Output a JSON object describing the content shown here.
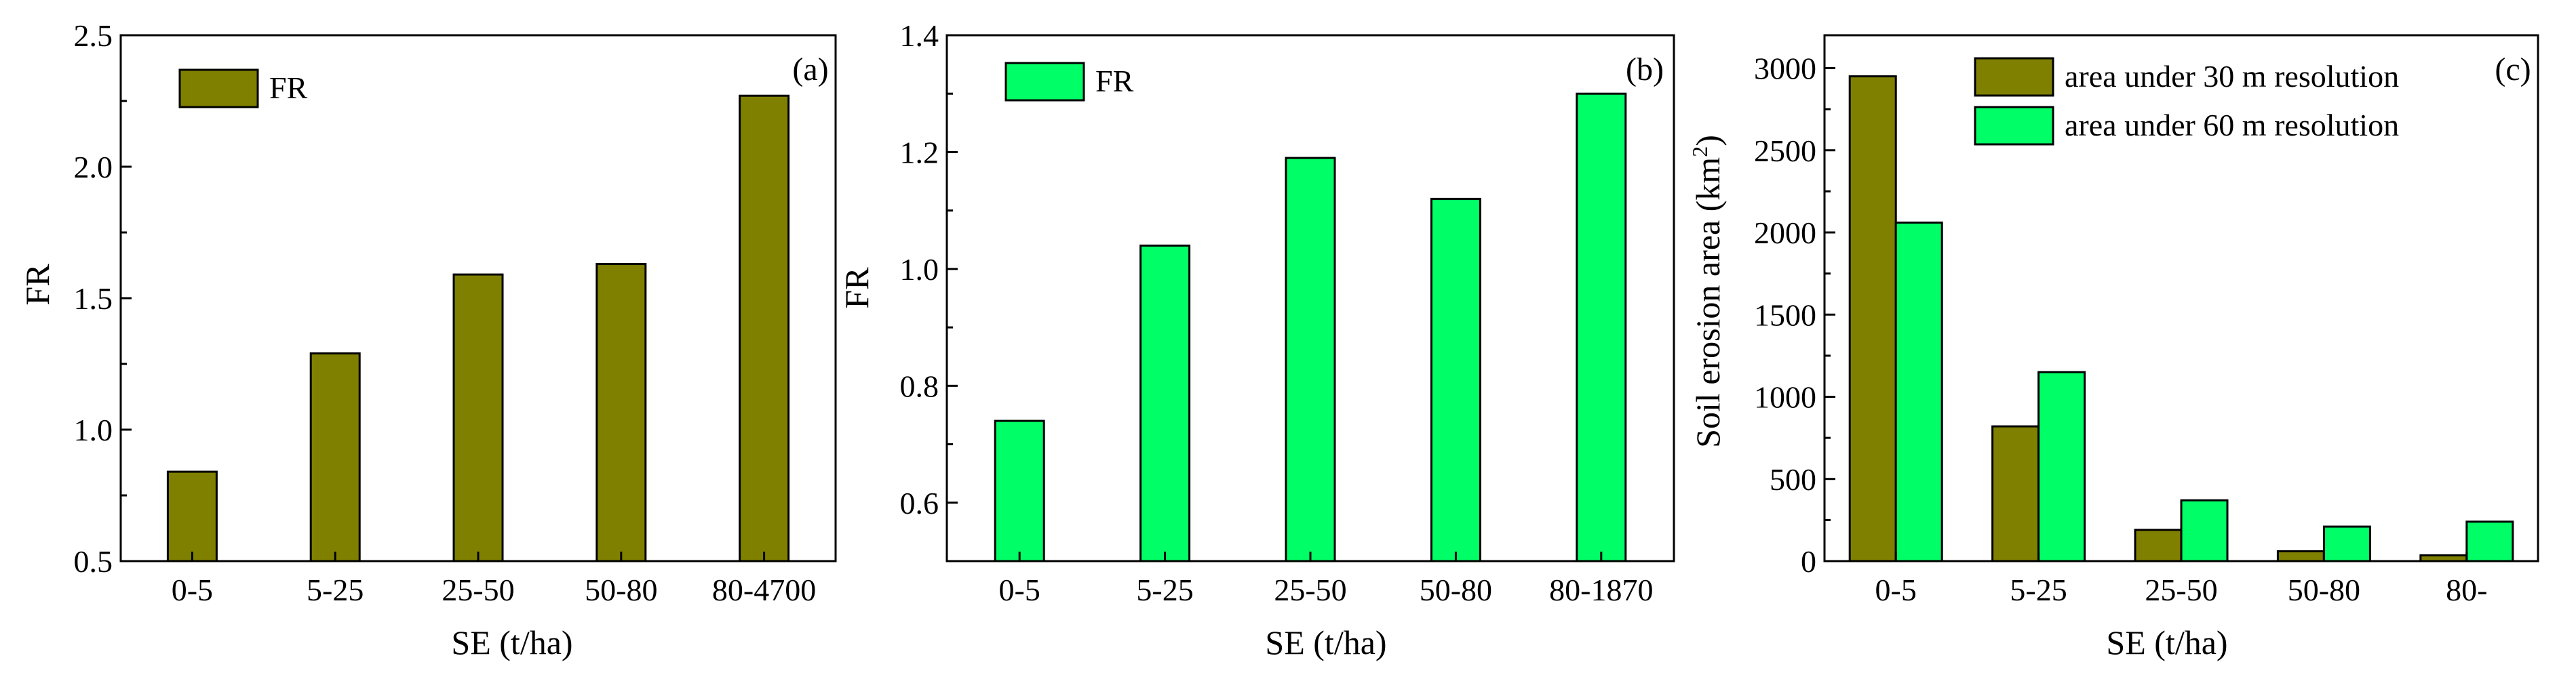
{
  "colors": {
    "olive": "#808000",
    "green": "#00FF66",
    "stroke": "#000000"
  },
  "chart_data": [
    {
      "type": "bar",
      "panel_label": "(a)",
      "categories": [
        "0-5",
        "5-25",
        "25-50",
        "50-80",
        "80-4700"
      ],
      "series": [
        {
          "name": "FR",
          "values": [
            0.84,
            1.29,
            1.59,
            1.63,
            2.27
          ],
          "color": "#808000"
        }
      ],
      "xlabel": "SE (t/ha)",
      "ylabel": "FR",
      "ylim": [
        0.5,
        2.5
      ],
      "yticks": [
        "0.5",
        "1.0",
        "1.5",
        "2.0",
        "2.5"
      ],
      "legend_position": "top-left"
    },
    {
      "type": "bar",
      "panel_label": "(b)",
      "categories": [
        "0-5",
        "5-25",
        "25-50",
        "50-80",
        "80-1870"
      ],
      "series": [
        {
          "name": "FR",
          "values": [
            0.74,
            1.04,
            1.19,
            1.12,
            1.3
          ],
          "color": "#00FF66"
        }
      ],
      "xlabel": "SE (t/ha)",
      "ylabel": "FR",
      "ylim": [
        0.5,
        1.4
      ],
      "yticks": [
        "0.6",
        "0.8",
        "1.0",
        "1.2",
        "1.4"
      ],
      "legend_position": "top-left"
    },
    {
      "type": "bar",
      "panel_label": "(c)",
      "categories": [
        "0-5",
        "5-25",
        "25-50",
        "50-80",
        "80-"
      ],
      "series": [
        {
          "name": "area under 30 m resolution",
          "values": [
            2950,
            820,
            190,
            60,
            35
          ],
          "color": "#808000"
        },
        {
          "name": "area under 60 m resolution",
          "values": [
            2060,
            1150,
            370,
            210,
            240
          ],
          "color": "#00FF66"
        }
      ],
      "xlabel": "SE (t/ha)",
      "ylabel": "Soil erosion area  (km",
      "ylabel_sup": "2",
      "ylabel_close": ")",
      "ylim": [
        0,
        3200
      ],
      "yticks": [
        "0",
        "500",
        "1000",
        "1500",
        "2000",
        "2500",
        "3000"
      ],
      "legend_position": "top-right"
    }
  ]
}
